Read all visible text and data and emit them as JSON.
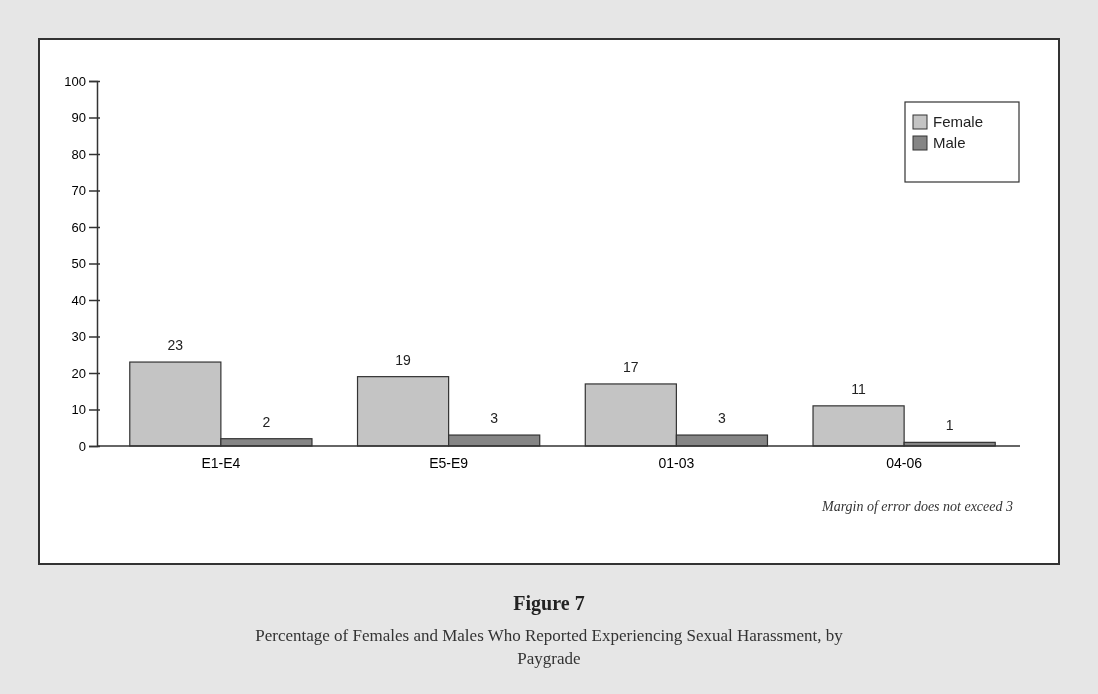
{
  "chart_data": {
    "type": "bar",
    "title": "Figure 7",
    "subtitle": "Percentage of Females and Males Who Reported Experiencing Sexual Harassment, by Paygrade",
    "categories": [
      "E1-E4",
      "E5-E9",
      "01-03",
      "04-06"
    ],
    "series": [
      {
        "name": "Female",
        "color": "#c4c4c4",
        "values": [
          23,
          19,
          17,
          11
        ]
      },
      {
        "name": "Male",
        "color": "#858585",
        "values": [
          2,
          3,
          3,
          1
        ]
      }
    ],
    "ylim": [
      0,
      100
    ],
    "yticks": [
      0,
      10,
      20,
      30,
      40,
      50,
      60,
      70,
      80,
      90,
      100
    ],
    "grid": false,
    "legend": "top right",
    "data_labels": true,
    "annotations": [
      "Margin of error does not exceed 3"
    ]
  }
}
